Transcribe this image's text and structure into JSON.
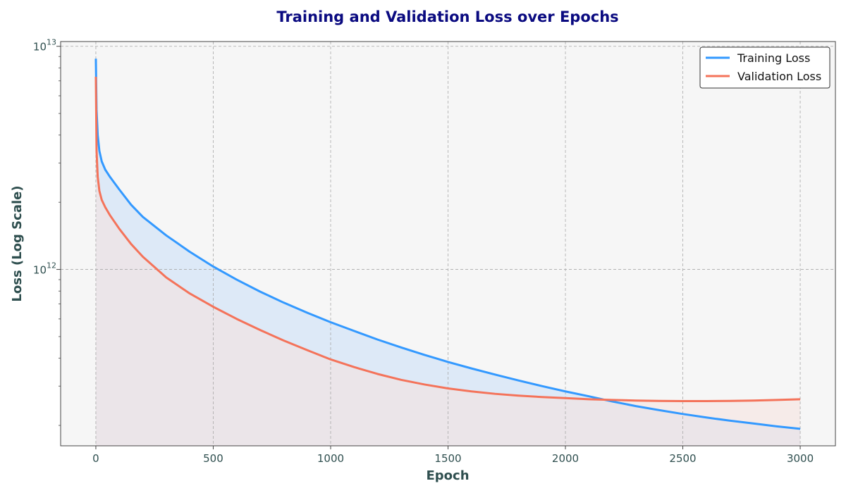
{
  "chart_data": {
    "type": "line",
    "title": "Training and Validation Loss over Epochs",
    "xlabel": "Epoch",
    "ylabel": "Loss (Log Scale)",
    "xlim": [
      -150,
      3150
    ],
    "ylim": [
      162000000000.0,
      10500000000000.0
    ],
    "yscale": "log",
    "grid": true,
    "legend_position": "top-right",
    "x_ticks": [
      0,
      500,
      1000,
      1500,
      2000,
      2500,
      3000
    ],
    "x_tick_labels": [
      "0",
      "500",
      "1000",
      "1500",
      "2000",
      "2500",
      "3000"
    ],
    "y_major_ticks": [
      1000000000000.0,
      10000000000000.0
    ],
    "y_tick_labels": [
      {
        "base": "10",
        "exp": "12"
      },
      {
        "base": "10",
        "exp": "13"
      }
    ],
    "series": [
      {
        "name": "Training Loss",
        "color": "#3399ff",
        "fill_color": "#dde9f7",
        "x": [
          0,
          3,
          8,
          15,
          25,
          40,
          60,
          100,
          150,
          200,
          300,
          400,
          500,
          600,
          700,
          800,
          900,
          1000,
          1100,
          1200,
          1300,
          1400,
          1500,
          1600,
          1700,
          1800,
          1900,
          2000,
          2100,
          2200,
          2300,
          2400,
          2500,
          2600,
          2700,
          2800,
          2900,
          3000
        ],
        "y": [
          8800000000000.0,
          5200000000000.0,
          4000000000000.0,
          3400000000000.0,
          3050000000000.0,
          2800000000000.0,
          2600000000000.0,
          2280000000000.0,
          1950000000000.0,
          1720000000000.0,
          1420000000000.0,
          1200000000000.0,
          1030000000000.0,
          900000000000.0,
          795000000000.0,
          710000000000.0,
          640000000000.0,
          580000000000.0,
          530000000000.0,
          485000000000.0,
          447000000000.0,
          414000000000.0,
          385000000000.0,
          360000000000.0,
          338000000000.0,
          318000000000.0,
          300000000000.0,
          284000000000.0,
          270000000000.0,
          256000000000.0,
          244000000000.0,
          234000000000.0,
          225000000000.0,
          217000000000.0,
          210000000000.0,
          204000000000.0,
          198000000000.0,
          193000000000.0
        ]
      },
      {
        "name": "Validation Loss",
        "color": "#f4735a",
        "fill_color": "#f6e2df",
        "x": [
          0,
          3,
          8,
          15,
          25,
          40,
          60,
          100,
          150,
          200,
          300,
          400,
          500,
          600,
          700,
          800,
          900,
          1000,
          1100,
          1200,
          1300,
          1400,
          1500,
          1600,
          1700,
          1800,
          1900,
          2000,
          2100,
          2200,
          2300,
          2400,
          2500,
          2600,
          2700,
          2800,
          2900,
          3000
        ],
        "y": [
          7300000000000.0,
          3400000000000.0,
          2600000000000.0,
          2250000000000.0,
          2050000000000.0,
          1900000000000.0,
          1750000000000.0,
          1520000000000.0,
          1300000000000.0,
          1140000000000.0,
          920000000000.0,
          780000000000.0,
          680000000000.0,
          600000000000.0,
          535000000000.0,
          480000000000.0,
          435000000000.0,
          395000000000.0,
          365000000000.0,
          340000000000.0,
          320000000000.0,
          305000000000.0,
          293000000000.0,
          284000000000.0,
          277000000000.0,
          272000000000.0,
          268000000000.0,
          265000000000.0,
          262000000000.0,
          260000000000.0,
          258500000000.0,
          257500000000.0,
          257000000000.0,
          257000000000.0,
          257500000000.0,
          258500000000.0,
          260000000000.0,
          262000000000.0
        ]
      }
    ]
  }
}
